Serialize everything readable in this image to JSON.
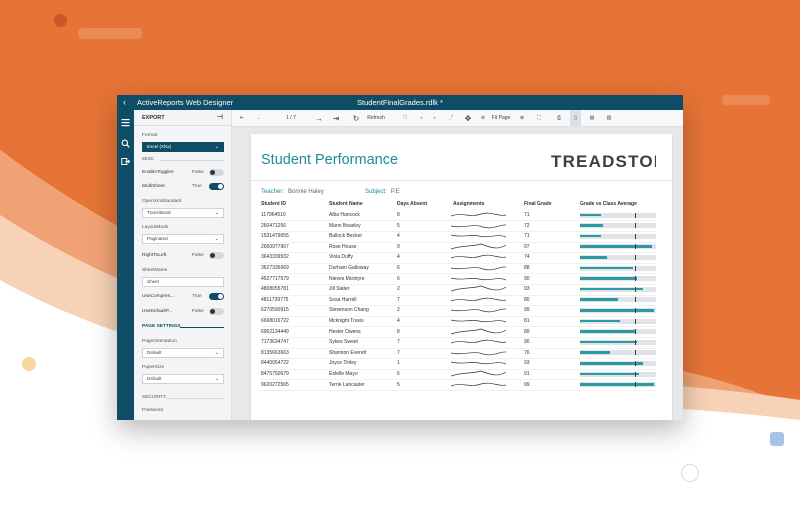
{
  "colors": {
    "orange": "#e57436",
    "peach": "#f3b78a",
    "teal_dark": "#0e4d65",
    "teal": "#1f8c98",
    "bar": "#2a9aa3"
  },
  "window": {
    "app_title": "ActiveReports Web Designer",
    "doc_title": "StudentFinalGrades.rdlk *"
  },
  "icon_bar": {
    "icons": [
      "menu-icon",
      "search-icon",
      "export-icon"
    ]
  },
  "panel": {
    "header": "EXPORT",
    "format_label": "Format",
    "format_value": "Excel (Xlsx)",
    "misc_label": "MISC",
    "enable_toggles_label": "EnableToggles",
    "enable_toggles_value": "False",
    "multi_sheet_label": "MultiSheet",
    "multi_sheet_value": "True",
    "open_xml_label": "OpenXmlStandard",
    "open_xml_value": "Transitional",
    "layout_mode_label": "LayoutMode",
    "layout_mode_value": "Paginated",
    "right_to_left_label": "RightToLeft",
    "right_to_left_value": "False",
    "sheet_name_label": "SheetName",
    "sheet_name_value": "Sheet",
    "use_compression_label": "UseCompres...",
    "use_compression_value": "True",
    "use_default_label": "UseDefaultP...",
    "use_default_value": "False",
    "page_settings_label": "PAGE SETTINGS",
    "page_orientation_label": "PageOrientation",
    "page_orientation_value": "Default",
    "paper_size_label": "PaperSize",
    "paper_size_value": "Default",
    "security_label": "SECURITY",
    "password_label": "Password"
  },
  "toolbar": {
    "page_indicator": "1 / 7",
    "refresh_label": "Refresh",
    "fit_page_label": "Fit Page"
  },
  "report": {
    "title": "Student Performance",
    "logo_text": "TREADSTONE",
    "teacher_label": "Teacher:",
    "teacher_value": "Bonnie Haley",
    "subject_label": "Subject:",
    "subject_value": "P.E",
    "columns": [
      "Student ID",
      "Student Name",
      "Days Absent",
      "Assignments",
      "Final Grade",
      "Grade vs Class Average"
    ],
    "rows": [
      {
        "id": "117964510",
        "name": "Alba Hancock",
        "absent": "8",
        "grade": "71",
        "fill": 0.28,
        "avg": 0.72
      },
      {
        "id": "260471256",
        "name": "Mann Beasley",
        "absent": "5",
        "grade": "72",
        "fill": 0.3,
        "avg": 0.72
      },
      {
        "id": "1531479655",
        "name": "Bullock Becker",
        "absent": "4",
        "grade": "71",
        "fill": 0.28,
        "avg": 0.72
      },
      {
        "id": "2650977967",
        "name": "Rose House",
        "absent": "9",
        "grade": "97",
        "fill": 0.95,
        "avg": 0.72
      },
      {
        "id": "3643339932",
        "name": "Viola Duffy",
        "absent": "4",
        "grade": "74",
        "fill": 0.36,
        "avg": 0.72
      },
      {
        "id": "3627336669",
        "name": "Durham Galloway",
        "absent": "6",
        "grade": "88",
        "fill": 0.7,
        "avg": 0.72
      },
      {
        "id": "4527717579",
        "name": "Nieves Mcintyre",
        "absent": "6",
        "grade": "90",
        "fill": 0.75,
        "avg": 0.72
      },
      {
        "id": "4808055781",
        "name": "Jill Slater",
        "absent": "2",
        "grade": "93",
        "fill": 0.83,
        "avg": 0.72
      },
      {
        "id": "4811739775",
        "name": "Sosa Harrell",
        "absent": "7",
        "grade": "80",
        "fill": 0.5,
        "avg": 0.72
      },
      {
        "id": "6270590915",
        "name": "Stevenson Chang",
        "absent": "2",
        "grade": "99",
        "fill": 0.98,
        "avg": 0.72
      },
      {
        "id": "6698016722",
        "name": "Mcknight Travis",
        "absent": "4",
        "grade": "81",
        "fill": 0.53,
        "avg": 0.72
      },
      {
        "id": "6962134449",
        "name": "Hester Owens",
        "absent": "8",
        "grade": "89",
        "fill": 0.72,
        "avg": 0.72
      },
      {
        "id": "7173634747",
        "name": "Sykes Sweet",
        "absent": "7",
        "grade": "90",
        "fill": 0.75,
        "avg": 0.72
      },
      {
        "id": "8135663663",
        "name": "Shannon Everett",
        "absent": "7",
        "grade": "76",
        "fill": 0.4,
        "avg": 0.72
      },
      {
        "id": "8440054722",
        "name": "Joyce Tinley",
        "absent": "1",
        "grade": "93",
        "fill": 0.83,
        "avg": 0.72
      },
      {
        "id": "8475750679",
        "name": "Estelle Mayo",
        "absent": "6",
        "grade": "91",
        "fill": 0.78,
        "avg": 0.72
      },
      {
        "id": "9620272565",
        "name": "Terrie Lancaster",
        "absent": "5",
        "grade": "99",
        "fill": 0.98,
        "avg": 0.72
      }
    ]
  }
}
